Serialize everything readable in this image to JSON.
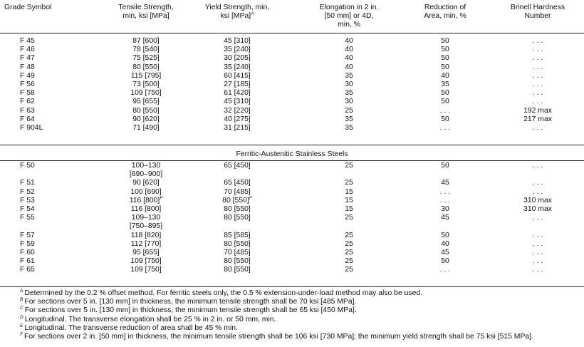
{
  "header": {
    "grade": "Grade Symbol",
    "tensile": [
      "Tensile Strength,",
      "min, ksi [MPa]"
    ],
    "yield": [
      "Yield Strength, min,",
      "ksi [MPa]"
    ],
    "yield_note": "A",
    "elongation": [
      "Elongation in 2 in.",
      "[50 mm] or 4D,",
      "min, %"
    ],
    "reduction": [
      "Reduction of",
      "Area, min, %"
    ],
    "brinell": [
      "Brinell Hardness",
      "Number"
    ]
  },
  "rows_austenitic": [
    {
      "grade": "F 45",
      "tensile": "87 [600]",
      "yield": "45 [310]",
      "elong": "40",
      "reduction": "50",
      "brinell": ". . ."
    },
    {
      "grade": "F 46",
      "tensile": "78 [540]",
      "yield": "35 [240]",
      "elong": "40",
      "reduction": "50",
      "brinell": ". . ."
    },
    {
      "grade": "F 47",
      "tensile": "75 [525]",
      "yield": "30 [205]",
      "elong": "40",
      "reduction": "50",
      "brinell": ". . ."
    },
    {
      "grade": "F 48",
      "tensile": "80 [550]",
      "yield": "35 [240]",
      "elong": "40",
      "reduction": "50",
      "brinell": ". . ."
    },
    {
      "grade": "F 49",
      "tensile": "115 [795]",
      "yield": "60 [415]",
      "elong": "35",
      "reduction": "40",
      "brinell": ". . ."
    },
    {
      "grade": "F 56",
      "tensile": "73 [500]",
      "yield": "27 [185]",
      "elong": "30",
      "reduction": "35",
      "brinell": ". . ."
    },
    {
      "grade": "F 58",
      "tensile": "109 [750]",
      "yield": "61 [420]",
      "elong": "35",
      "reduction": "50",
      "brinell": ". . ."
    },
    {
      "grade": "F 62",
      "tensile": "95 [655]",
      "yield": "45 [310]",
      "elong": "30",
      "reduction": "50",
      "brinell": ". . ."
    },
    {
      "grade": "F 63",
      "tensile": "80 [550]",
      "yield": "32 [220]",
      "elong": "25",
      "reduction": ". . .",
      "brinell": "192 max"
    },
    {
      "grade": "F 64",
      "tensile": "90 [620]",
      "yield": "40 [275]",
      "elong": "35",
      "reduction": "50",
      "brinell": "217 max"
    },
    {
      "grade": "F 904L",
      "tensile": "71 [490]",
      "yield": "31 [215]",
      "elong": "35",
      "reduction": ". . .",
      "brinell": ". . ."
    }
  ],
  "section_title": "Ferritic-Austenitic Stainless Steels",
  "rows_duplex": [
    {
      "grade": "F 50",
      "tensile": "100–130",
      "yield": "65 [450]",
      "elong": "25",
      "reduction": "50",
      "brinell": ". . ."
    },
    {
      "grade": "",
      "tensile": "[690–900]",
      "yield": "",
      "elong": "",
      "reduction": "",
      "brinell": ""
    },
    {
      "grade": "F 51",
      "tensile": "90 [620]",
      "yield": "65 [450]",
      "elong": "25",
      "reduction": "45",
      "brinell": ". . ."
    },
    {
      "grade": "F 52",
      "tensile": "100 [690]",
      "yield": "70 [485]",
      "elong": "15",
      "reduction": ". . .",
      "brinell": ". . ."
    },
    {
      "grade": "F 53",
      "tensile": "116 [800]",
      "tensile_note": "F",
      "yield": "80 [550]",
      "yield_note": "F",
      "elong": "15",
      "reduction": ". . .",
      "brinell": "310 max"
    },
    {
      "grade": "F 54",
      "tensile": "116 [800]",
      "yield": "80 [550]",
      "elong": "15",
      "reduction": "30",
      "brinell": "310 max"
    },
    {
      "grade": "F 55",
      "tensile": "109–130",
      "yield": "80 [550]",
      "elong": "25",
      "reduction": "45",
      "brinell": ". . ."
    },
    {
      "grade": "",
      "tensile": "[750–895]",
      "yield": "",
      "elong": "",
      "reduction": "",
      "brinell": ""
    },
    {
      "grade": "F 57",
      "tensile": "118 [820]",
      "yield": "85 [585]",
      "elong": "25",
      "reduction": "50",
      "brinell": ". . ."
    },
    {
      "grade": "F 59",
      "tensile": "112 [770]",
      "yield": "80 [550]",
      "elong": "25",
      "reduction": "40",
      "brinell": ". . ."
    },
    {
      "grade": "F 60",
      "tensile": "95 [655]",
      "yield": "70 [485]",
      "elong": "25",
      "reduction": "45",
      "brinell": ". . ."
    },
    {
      "grade": "F 61",
      "tensile": "109 [750]",
      "yield": "80 [550]",
      "elong": "25",
      "reduction": "50",
      "brinell": ". . ."
    },
    {
      "grade": "F 65",
      "tensile": "109 [750]",
      "yield": "80 [550]",
      "elong": "25",
      "reduction": ". . .",
      "brinell": ". . ."
    }
  ],
  "footnotes": [
    {
      "mark": "A",
      "text": "Determined by the 0.2 % offset method. For ferritic steels only, the 0.5 % extension-under-load method may also be used."
    },
    {
      "mark": "B",
      "text": "For sections over 5 in. [130 mm] in thickness, the minimum tensile strength shall be 70 ksi [485 MPa]."
    },
    {
      "mark": "C",
      "text": "For sections over 5 in. [130 mm] in thickness, the minimum tensile strength shall be 65 ksi [450 MPa]."
    },
    {
      "mark": "D",
      "text": "Longitudinal. The transverse elongation shall be 25 % in 2 in. or 50 mm, min."
    },
    {
      "mark": "E",
      "text": "Longitudinal. The transverse reduction of area shall be 45 % min."
    },
    {
      "mark": "F",
      "text": "For sections over 2 in. [50 mm] in thickness, the minimum tensile strength shall be 106 ksi [730 MPa]; the minimum yield strength shall be 75 ksi [515 MPa]."
    }
  ]
}
